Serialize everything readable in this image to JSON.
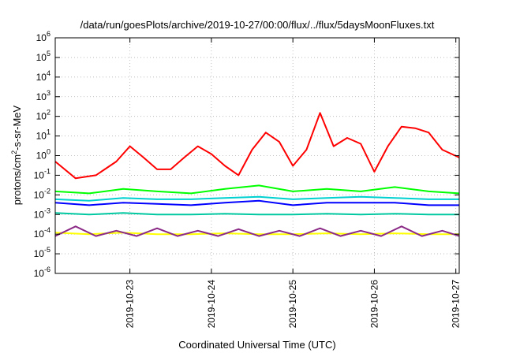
{
  "chart_data": {
    "type": "line",
    "title": "/data/run/goesPlots/archive/2019-10-27/00:00/flux/../flux/5daysMoonFluxes.txt",
    "xlabel": "Coordinated Universal Time (UTC)",
    "ylabel": {
      "base": "protons/cm",
      "sup": "2",
      "rest": "-s-sr-MeV"
    },
    "log_y": true,
    "ylim": [
      1e-06,
      1000000.0
    ],
    "xlim": [
      "2019-10-22T02:00",
      "2019-10-27T01:00"
    ],
    "grid": true,
    "legend": "none",
    "x_ticks": [
      "2019-10-23",
      "2019-10-24",
      "2019-10-25",
      "2019-10-26",
      "2019-10-27"
    ],
    "y_ticks": [
      {
        "base": "10",
        "exp": "-6"
      },
      {
        "base": "10",
        "exp": "-5"
      },
      {
        "base": "10",
        "exp": "-4"
      },
      {
        "base": "10",
        "exp": "-3"
      },
      {
        "base": "10",
        "exp": "-2"
      },
      {
        "base": "10",
        "exp": "-1"
      },
      {
        "base": "10",
        "exp": "0"
      },
      {
        "base": "10",
        "exp": "1"
      },
      {
        "base": "10",
        "exp": "2"
      },
      {
        "base": "10",
        "exp": "3"
      },
      {
        "base": "10",
        "exp": "4"
      },
      {
        "base": "10",
        "exp": "5"
      },
      {
        "base": "10",
        "exp": "6"
      }
    ],
    "series": [
      {
        "color": "#ff0000",
        "x": [
          "2019-10-22T02:00",
          "2019-10-22T08:00",
          "2019-10-22T14:00",
          "2019-10-22T20:00",
          "2019-10-23T00:00",
          "2019-10-23T04:00",
          "2019-10-23T08:00",
          "2019-10-23T12:00",
          "2019-10-23T16:00",
          "2019-10-23T20:00",
          "2019-10-24T00:00",
          "2019-10-24T04:00",
          "2019-10-24T08:00",
          "2019-10-24T12:00",
          "2019-10-24T16:00",
          "2019-10-24T20:00",
          "2019-10-25T00:00",
          "2019-10-25T04:00",
          "2019-10-25T08:00",
          "2019-10-25T12:00",
          "2019-10-25T16:00",
          "2019-10-25T20:00",
          "2019-10-26T00:00",
          "2019-10-26T04:00",
          "2019-10-26T08:00",
          "2019-10-26T12:00",
          "2019-10-26T16:00",
          "2019-10-26T20:00",
          "2019-10-27T01:00"
        ],
        "y": [
          0.5,
          0.07,
          0.1,
          0.5,
          3,
          0.8,
          0.2,
          0.2,
          0.8,
          3,
          1.2,
          0.3,
          0.1,
          2,
          15,
          5,
          0.3,
          2,
          150,
          3,
          8,
          4,
          0.15,
          3,
          30,
          25,
          15,
          2,
          0.8
        ]
      },
      {
        "color": "#00ff00",
        "x": [
          "2019-10-22T02:00",
          "2019-10-22T12:00",
          "2019-10-22T22:00",
          "2019-10-23T08:00",
          "2019-10-23T18:00",
          "2019-10-24T04:00",
          "2019-10-24T14:00",
          "2019-10-25T00:00",
          "2019-10-25T10:00",
          "2019-10-25T20:00",
          "2019-10-26T06:00",
          "2019-10-26T16:00",
          "2019-10-27T01:00"
        ],
        "y": [
          0.015,
          0.012,
          0.02,
          0.015,
          0.012,
          0.02,
          0.03,
          0.015,
          0.02,
          0.015,
          0.025,
          0.015,
          0.012
        ]
      },
      {
        "color": "#00d0d0",
        "x": [
          "2019-10-22T02:00",
          "2019-10-22T12:00",
          "2019-10-22T22:00",
          "2019-10-23T08:00",
          "2019-10-23T18:00",
          "2019-10-24T04:00",
          "2019-10-24T14:00",
          "2019-10-25T00:00",
          "2019-10-25T10:00",
          "2019-10-25T20:00",
          "2019-10-26T06:00",
          "2019-10-26T16:00",
          "2019-10-27T01:00"
        ],
        "y": [
          0.006,
          0.005,
          0.007,
          0.006,
          0.006,
          0.007,
          0.008,
          0.006,
          0.007,
          0.008,
          0.007,
          0.006,
          0.006
        ]
      },
      {
        "color": "#0000ff",
        "x": [
          "2019-10-22T02:00",
          "2019-10-22T12:00",
          "2019-10-22T22:00",
          "2019-10-23T08:00",
          "2019-10-23T18:00",
          "2019-10-24T04:00",
          "2019-10-24T14:00",
          "2019-10-25T00:00",
          "2019-10-25T10:00",
          "2019-10-25T20:00",
          "2019-10-26T06:00",
          "2019-10-26T16:00",
          "2019-10-27T01:00"
        ],
        "y": [
          0.004,
          0.003,
          0.004,
          0.0035,
          0.003,
          0.004,
          0.005,
          0.003,
          0.004,
          0.004,
          0.004,
          0.003,
          0.003
        ]
      },
      {
        "color": "#00c8a0",
        "x": [
          "2019-10-22T02:00",
          "2019-10-22T12:00",
          "2019-10-22T22:00",
          "2019-10-23T08:00",
          "2019-10-23T18:00",
          "2019-10-24T04:00",
          "2019-10-24T14:00",
          "2019-10-25T00:00",
          "2019-10-25T10:00",
          "2019-10-25T20:00",
          "2019-10-26T06:00",
          "2019-10-26T16:00",
          "2019-10-27T01:00"
        ],
        "y": [
          0.0012,
          0.001,
          0.0012,
          0.001,
          0.001,
          0.0011,
          0.001,
          0.001,
          0.0011,
          0.001,
          0.0011,
          0.001,
          0.001
        ]
      },
      {
        "color": "#ffff00",
        "x": [
          "2019-10-22T02:00",
          "2019-10-22T12:00",
          "2019-10-22T22:00",
          "2019-10-23T08:00",
          "2019-10-23T18:00",
          "2019-10-24T04:00",
          "2019-10-24T14:00",
          "2019-10-25T00:00",
          "2019-10-25T10:00",
          "2019-10-25T20:00",
          "2019-10-26T06:00",
          "2019-10-26T16:00",
          "2019-10-27T01:00"
        ],
        "y": [
          0.00012,
          0.0001,
          0.00012,
          0.0001,
          0.0001,
          0.00011,
          0.0001,
          0.0001,
          0.00011,
          0.0001,
          0.00011,
          0.0001,
          0.0001
        ]
      },
      {
        "color": "#8b2a86",
        "x": [
          "2019-10-22T02:00",
          "2019-10-22T08:00",
          "2019-10-22T14:00",
          "2019-10-22T20:00",
          "2019-10-23T02:00",
          "2019-10-23T08:00",
          "2019-10-23T14:00",
          "2019-10-23T20:00",
          "2019-10-24T02:00",
          "2019-10-24T08:00",
          "2019-10-24T14:00",
          "2019-10-24T20:00",
          "2019-10-25T02:00",
          "2019-10-25T08:00",
          "2019-10-25T14:00",
          "2019-10-25T20:00",
          "2019-10-26T02:00",
          "2019-10-26T08:00",
          "2019-10-26T14:00",
          "2019-10-26T20:00",
          "2019-10-27T01:00"
        ],
        "y": [
          8e-05,
          0.00025,
          8e-05,
          0.00015,
          8e-05,
          0.0002,
          8e-05,
          0.00015,
          8e-05,
          0.00018,
          8e-05,
          0.00015,
          8e-05,
          0.0002,
          8e-05,
          0.00015,
          8e-05,
          0.00025,
          8e-05,
          0.00015,
          8e-05
        ]
      }
    ]
  }
}
